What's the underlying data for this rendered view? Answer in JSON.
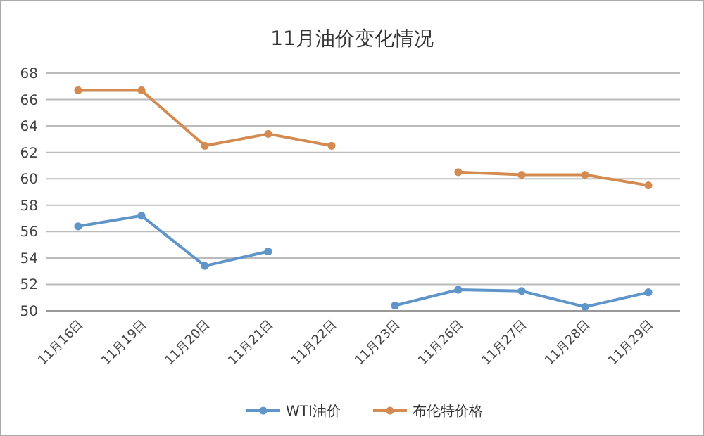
{
  "chart_data": {
    "type": "line",
    "title": "11月油价变化情况",
    "categories": [
      "11月16日",
      "11月19日",
      "11月20日",
      "11月21日",
      "11月22日",
      "11月23日",
      "11月26日",
      "11月27日",
      "11月28日",
      "11月29日"
    ],
    "series": [
      {
        "name": "WTI油价",
        "color": "#5f95c8",
        "values": [
          56.4,
          57.2,
          53.4,
          54.5,
          null,
          50.4,
          51.6,
          51.5,
          50.3,
          51.4
        ]
      },
      {
        "name": "布伦特价格",
        "color": "#d48b52",
        "values": [
          66.7,
          66.7,
          62.5,
          63.4,
          62.5,
          null,
          60.5,
          60.3,
          60.3,
          59.5
        ]
      }
    ],
    "ylim": [
      50,
      68
    ],
    "yticks": [
      50,
      52,
      54,
      56,
      58,
      60,
      62,
      64,
      66,
      68
    ],
    "grid": "y",
    "legend": "bottom",
    "marker": "circle",
    "line_style": "solid"
  }
}
